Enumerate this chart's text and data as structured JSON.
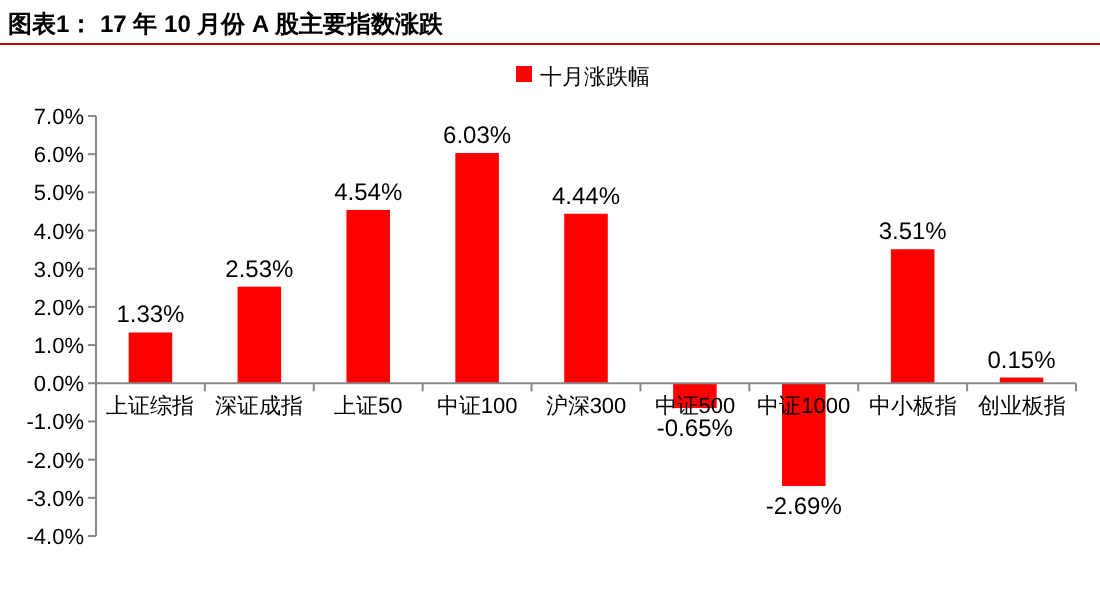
{
  "chart_data": {
    "type": "bar",
    "title": "图表1：  17 年 10 月份 A 股主要指数涨跌",
    "categories": [
      "上证综指",
      "深证成指",
      "上证50",
      "中证100",
      "沪深300",
      "中证500",
      "中证1000",
      "中小板指",
      "创业板指"
    ],
    "series": [
      {
        "name": "十月涨跌幅",
        "color": "#ff0000",
        "values": [
          1.33,
          2.53,
          4.54,
          6.03,
          4.44,
          -0.65,
          -2.69,
          3.51,
          0.15
        ],
        "value_labels": [
          "1.33%",
          "2.53%",
          "4.54%",
          "6.03%",
          "4.44%",
          "-0.65%",
          "-2.69%",
          "3.51%",
          "0.15%"
        ]
      }
    ],
    "ylim": [
      -4,
      7
    ],
    "yticks": [
      {
        "value": -4,
        "label": "-4.0%"
      },
      {
        "value": -3,
        "label": "-3.0%"
      },
      {
        "value": -2,
        "label": "-2.0%"
      },
      {
        "value": -1,
        "label": "-1.0%"
      },
      {
        "value": 0,
        "label": "0.0%"
      },
      {
        "value": 1,
        "label": "1.0%"
      },
      {
        "value": 2,
        "label": "2.0%"
      },
      {
        "value": 3,
        "label": "3.0%"
      },
      {
        "value": 4,
        "label": "4.0%"
      },
      {
        "value": 5,
        "label": "5.0%"
      },
      {
        "value": 6,
        "label": "6.0%"
      },
      {
        "value": 7,
        "label": "7.0%"
      }
    ],
    "legend": "top",
    "grid": false
  }
}
